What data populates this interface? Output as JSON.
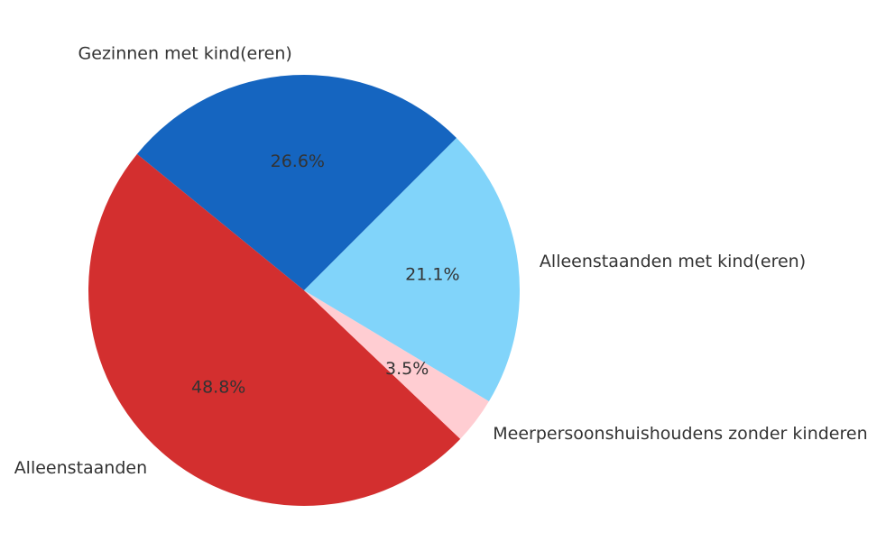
{
  "chart_data": {
    "type": "pie",
    "title": "",
    "start_angle_deg": 45,
    "direction": "counterclockwise",
    "slices": [
      {
        "label": "Gezinnen met kind(eren)",
        "value": 26.6,
        "pct_text": "26.6%",
        "color": "#1565c0"
      },
      {
        "label": "Alleenstaanden",
        "value": 48.8,
        "pct_text": "48.8%",
        "color": "#d32f2f"
      },
      {
        "label": "Meerpersoonshuishoudens zonder kinderen",
        "value": 3.5,
        "pct_text": "3.5%",
        "color": "#ffcdd2"
      },
      {
        "label": "Alleenstaanden met kind(eren)",
        "value": 21.1,
        "pct_text": "21.1%",
        "color": "#81d4fa"
      }
    ]
  }
}
